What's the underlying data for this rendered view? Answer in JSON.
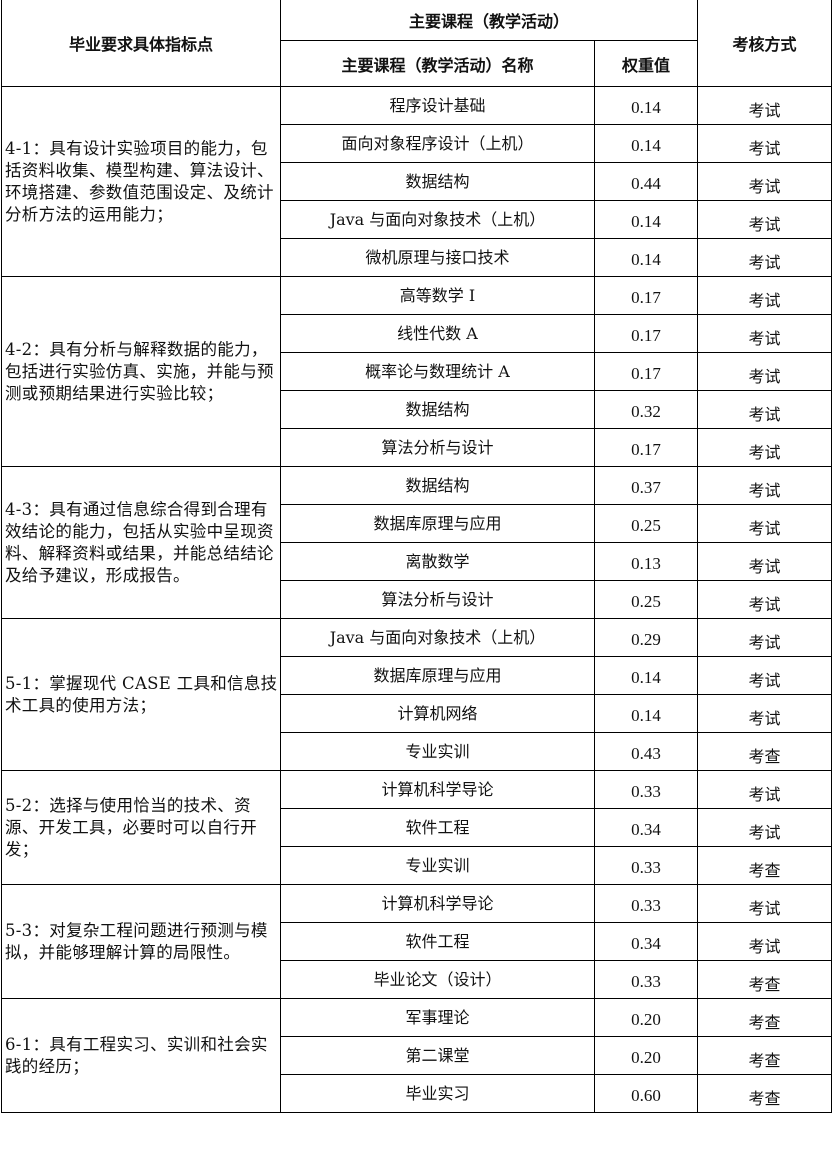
{
  "header": {
    "indicator": "毕业要求具体指标点",
    "main_course_group": "主要课程（教学活动）",
    "course_name": "主要课程（教学活动）名称",
    "weight": "权重值",
    "assessment": "考核方式"
  },
  "groups": [
    {
      "indicator": "4-1：具有设计实验项目的能力，包括资料收集、模型构建、算法设计、环境搭建、参数值范围设定、及统计分析方法的运用能力；",
      "courses": [
        {
          "name": "程序设计基础",
          "weight": "0.14",
          "method": "考试"
        },
        {
          "name": "面向对象程序设计（上机）",
          "weight": "0.14",
          "method": "考试"
        },
        {
          "name": "数据结构",
          "weight": "0.44",
          "method": "考试"
        },
        {
          "name": "Java 与面向对象技术（上机）",
          "weight": "0.14",
          "method": "考试"
        },
        {
          "name": "微机原理与接口技术",
          "weight": "0.14",
          "method": "考试"
        }
      ]
    },
    {
      "indicator": "4-2：具有分析与解释数据的能力，包括进行实验仿真、实施，并能与预测或预期结果进行实验比较；",
      "courses": [
        {
          "name": "高等数学 Ⅰ",
          "weight": "0.17",
          "method": "考试"
        },
        {
          "name": "线性代数 A",
          "weight": "0.17",
          "method": "考试"
        },
        {
          "name": "概率论与数理统计 A",
          "weight": "0.17",
          "method": "考试"
        },
        {
          "name": "数据结构",
          "weight": "0.32",
          "method": "考试"
        },
        {
          "name": "算法分析与设计",
          "weight": "0.17",
          "method": "考试"
        }
      ]
    },
    {
      "indicator": "4-3：具有通过信息综合得到合理有效结论的能力，包括从实验中呈现资料、解释资料或结果，并能总结结论及给予建议，形成报告。",
      "courses": [
        {
          "name": "数据结构",
          "weight": "0.37",
          "method": "考试"
        },
        {
          "name": "数据库原理与应用",
          "weight": "0.25",
          "method": "考试"
        },
        {
          "name": "离散数学",
          "weight": "0.13",
          "method": "考试"
        },
        {
          "name": "算法分析与设计",
          "weight": "0.25",
          "method": "考试"
        }
      ]
    },
    {
      "indicator": "5-1：掌握现代 CASE 工具和信息技术工具的使用方法；",
      "courses": [
        {
          "name": "Java 与面向对象技术（上机）",
          "weight": "0.29",
          "method": "考试"
        },
        {
          "name": "数据库原理与应用",
          "weight": "0.14",
          "method": "考试"
        },
        {
          "name": "计算机网络",
          "weight": "0.14",
          "method": "考试"
        },
        {
          "name": "专业实训",
          "weight": "0.43",
          "method": "考查"
        }
      ]
    },
    {
      "indicator": "5-2：选择与使用恰当的技术、资源、开发工具，必要时可以自行开发；",
      "courses": [
        {
          "name": "计算机科学导论",
          "weight": "0.33",
          "method": "考试"
        },
        {
          "name": "软件工程",
          "weight": "0.34",
          "method": "考试"
        },
        {
          "name": "专业实训",
          "weight": "0.33",
          "method": "考查"
        }
      ]
    },
    {
      "indicator": "5-3：对复杂工程问题进行预测与模拟，并能够理解计算的局限性。",
      "courses": [
        {
          "name": "计算机科学导论",
          "weight": "0.33",
          "method": "考试"
        },
        {
          "name": "软件工程",
          "weight": "0.34",
          "method": "考试"
        },
        {
          "name": "毕业论文（设计）",
          "weight": "0.33",
          "method": "考查"
        }
      ]
    },
    {
      "indicator": "6-1：具有工程实习、实训和社会实践的经历；",
      "courses": [
        {
          "name": "军事理论",
          "weight": "0.20",
          "method": "考查"
        },
        {
          "name": "第二课堂",
          "weight": "0.20",
          "method": "考查"
        },
        {
          "name": "毕业实习",
          "weight": "0.60",
          "method": "考查"
        }
      ]
    }
  ]
}
